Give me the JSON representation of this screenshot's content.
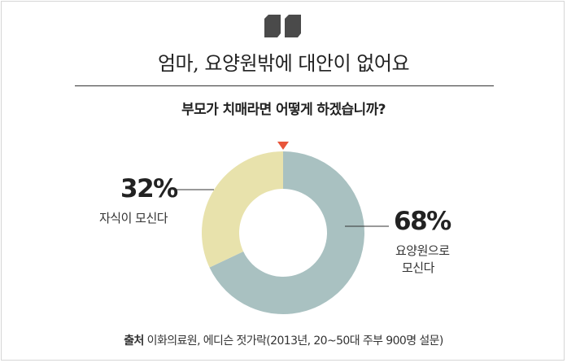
{
  "headline": "엄마, 요양원밖에 대안이 없어요",
  "question": "부모가 치매라면 어떻게 하겠습니까?",
  "source": {
    "label": "출처",
    "text": "이화의료원, 에디슨 젓가락(2013년, 20~50대 주부 900명 설문)"
  },
  "colors": {
    "nursing_home": "#a9c1c1",
    "children": "#e8e2ac",
    "marker": "#e8553a",
    "quote": "#4a4a4a"
  },
  "chart_data": {
    "type": "pie",
    "title": "부모가 치매라면 어떻게 하겠습니까?",
    "donut": true,
    "slices": [
      {
        "label": "요양원으로 모신다",
        "value": 68,
        "value_label": "68%",
        "label_lines": [
          "요양원으로",
          "모신다"
        ],
        "color": "#a9c1c1"
      },
      {
        "label": "자식이 모신다",
        "value": 32,
        "value_label": "32%",
        "label_lines": [
          "자식이 모신다"
        ],
        "color": "#e8e2ac"
      }
    ]
  }
}
